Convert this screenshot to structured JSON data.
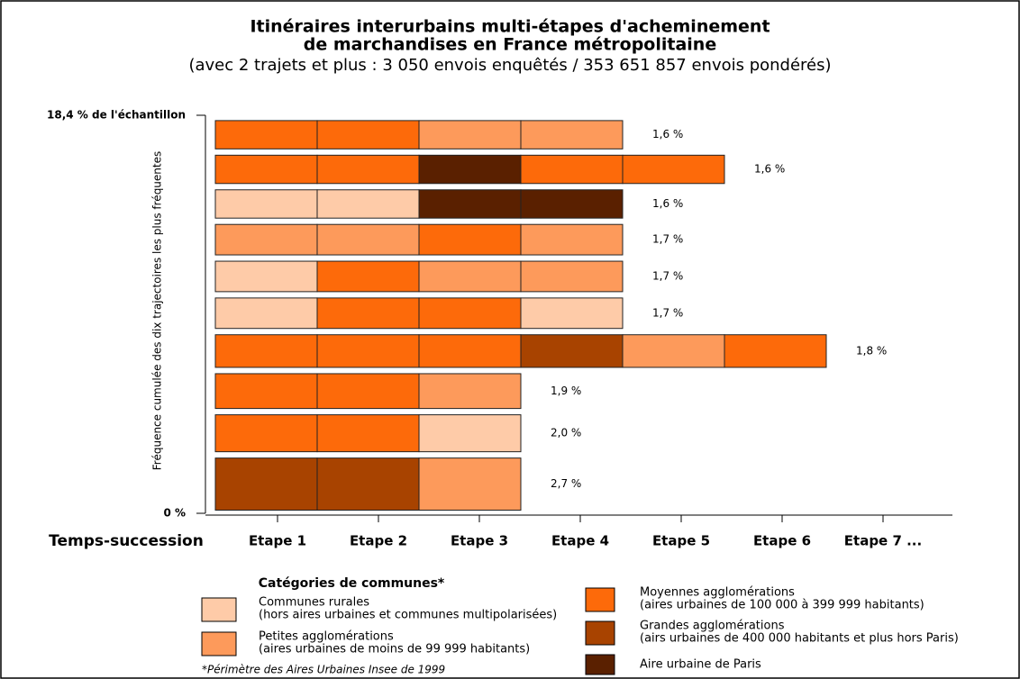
{
  "chart_data": {
    "type": "trajectory",
    "title": [
      "Itinéraires interurbains multi-étapes d'acheminement",
      "de marchandises en France métropolitaine"
    ],
    "subtitle": "(avec 2 trajets et plus : 3 050 envois enquêtés / 353 651 857 envois pondérés)",
    "y_label": "Fréquence cumulée des dix trajectoires les plus fréquentes",
    "x_label": "Temps-succession",
    "categories": [
      "Etape 1",
      "Etape 2",
      "Etape 3",
      "Etape 4",
      "Etape 5",
      "Etape 6",
      "Etape 7 ..."
    ],
    "ylim": [
      0,
      18.4
    ],
    "yticks": [
      {
        "value": 0,
        "label": "0 %"
      },
      {
        "value": 18.4,
        "label": "18,4 % de l'échantillon"
      }
    ],
    "trajectories": [
      {
        "steps": [
          "Grandes agglomérations",
          "Grandes agglomérations",
          "Petites agglomérations"
        ],
        "value": 2.7,
        "value_label": "2,7 %"
      },
      {
        "steps": [
          "Moyennes agglomérations",
          "Moyennes agglomérations",
          "Communes rurales"
        ],
        "value": 2.0,
        "value_label": "2,0 %"
      },
      {
        "steps": [
          "Moyennes agglomérations",
          "Moyennes agglomérations",
          "Petites agglomérations"
        ],
        "value": 1.9,
        "value_label": "1,9 %"
      },
      {
        "steps": [
          "Moyennes agglomérations",
          "Moyennes agglomérations",
          "Moyennes agglomérations",
          "Grandes agglomérations",
          "Petites agglomérations",
          "Moyennes agglomérations"
        ],
        "value": 1.8,
        "value_label": "1,8 %"
      },
      {
        "steps": [
          "Communes rurales",
          "Moyennes agglomérations",
          "Moyennes agglomérations",
          "Communes rurales"
        ],
        "value": 1.7,
        "value_label": "1,7 %"
      },
      {
        "steps": [
          "Communes rurales",
          "Moyennes agglomérations",
          "Petites agglomérations",
          "Petites agglomérations"
        ],
        "value": 1.7,
        "value_label": "1,7 %"
      },
      {
        "steps": [
          "Petites agglomérations",
          "Petites agglomérations",
          "Moyennes agglomérations",
          "Petites agglomérations"
        ],
        "value": 1.7,
        "value_label": "1,7 %"
      },
      {
        "steps": [
          "Communes rurales",
          "Communes rurales",
          "Aire urbaine de Paris",
          "Aire urbaine de Paris"
        ],
        "value": 1.6,
        "value_label": "1,6 %"
      },
      {
        "steps": [
          "Moyennes agglomérations",
          "Moyennes agglomérations",
          "Aire urbaine de Paris",
          "Moyennes agglomérations",
          "Moyennes agglomérations"
        ],
        "value": 1.6,
        "value_label": "1,6 %"
      },
      {
        "steps": [
          "Moyennes agglomérations",
          "Moyennes agglomérations",
          "Petites agglomérations",
          "Petites agglomérations"
        ],
        "value": 1.6,
        "value_label": "1,6 %"
      }
    ],
    "legend": {
      "title": "Catégories de communes*",
      "items": [
        {
          "name": "Communes rurales",
          "note": "(hors aires urbaines et communes multipolarisées)",
          "color": "#fecba8"
        },
        {
          "name": "Petites agglomérations",
          "note": "(aires urbaines de moins de 99 999 habitants)",
          "color": "#fd9a5b"
        },
        {
          "name": "Moyennes agglomérations",
          "note": "(aires urbaines de 100 000 à 399 999 habitants)",
          "color": "#fd6a0a"
        },
        {
          "name": "Grandes agglomérations",
          "note": "(airs urbaines de 400 000 habitants et plus hors Paris)",
          "color": "#a84300"
        },
        {
          "name": "Aire urbaine de Paris",
          "color": "#5a2000"
        }
      ],
      "footnote": "*Périmètre des Aires Urbaines Insee de 1999"
    }
  }
}
